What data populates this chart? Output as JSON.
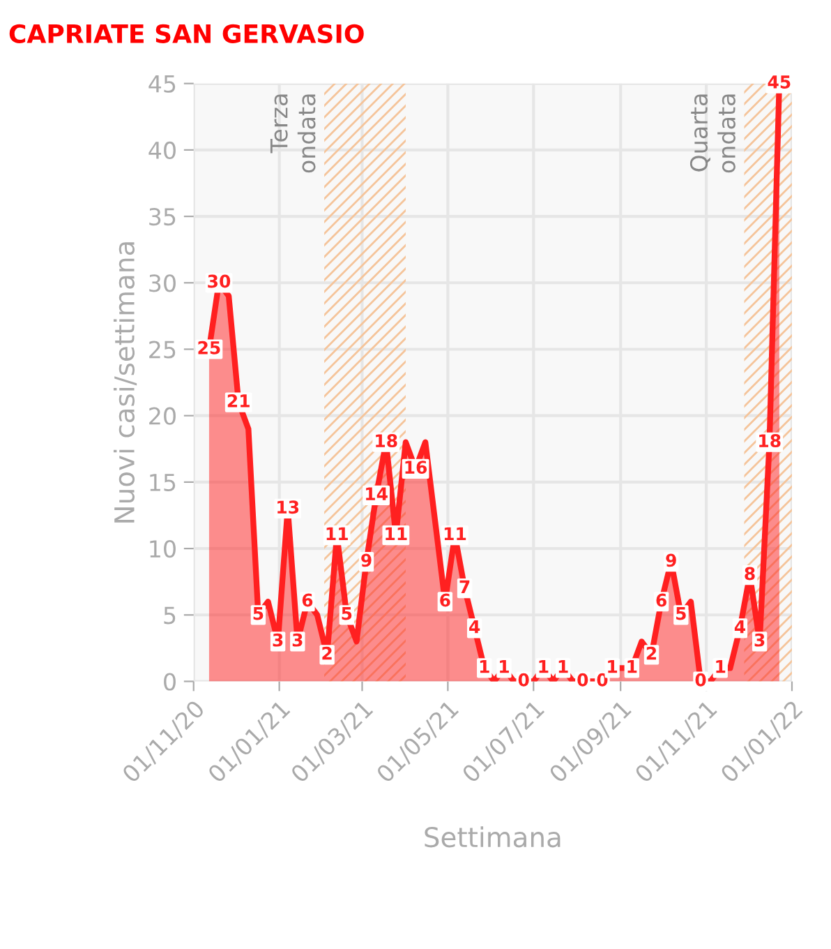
{
  "chart_data": {
    "type": "area",
    "title": "CAPRIATE SAN GERVASIO",
    "xlabel": "Settimana",
    "ylabel": "Nuovi casi/settimana",
    "x": [
      "2020-11-12",
      "2020-11-19",
      "2020-11-26",
      "2020-12-03",
      "2020-12-10",
      "2020-12-17",
      "2020-12-24",
      "2020-12-31",
      "2021-01-07",
      "2021-01-14",
      "2021-01-21",
      "2021-01-28",
      "2021-02-04",
      "2021-02-11",
      "2021-02-18",
      "2021-02-25",
      "2021-03-04",
      "2021-03-11",
      "2021-03-18",
      "2021-03-25",
      "2021-04-01",
      "2021-04-08",
      "2021-04-15",
      "2021-04-22",
      "2021-04-29",
      "2021-05-06",
      "2021-05-13",
      "2021-05-20",
      "2021-05-27",
      "2021-06-03",
      "2021-06-10",
      "2021-06-17",
      "2021-06-24",
      "2021-07-01",
      "2021-07-08",
      "2021-07-15",
      "2021-07-22",
      "2021-07-29",
      "2021-08-05",
      "2021-08-12",
      "2021-08-19",
      "2021-08-26",
      "2021-09-02",
      "2021-09-09",
      "2021-09-16",
      "2021-09-23",
      "2021-09-30",
      "2021-10-07",
      "2021-10-14",
      "2021-10-21",
      "2021-10-28",
      "2021-11-04",
      "2021-11-11",
      "2021-11-18",
      "2021-11-25",
      "2021-12-02",
      "2021-12-09",
      "2021-12-16",
      "2021-12-23"
    ],
    "series": [
      {
        "color": "#ff2020",
        "values": [
          25,
          30,
          29,
          21,
          19,
          5,
          6,
          3,
          13,
          3,
          6,
          5,
          2,
          11,
          5,
          3,
          9,
          14,
          18,
          11,
          18,
          16,
          18,
          12,
          6,
          11,
          7,
          4,
          1,
          0,
          1,
          0,
          0,
          0,
          1,
          0,
          1,
          0,
          0,
          0,
          0,
          1,
          1,
          1,
          3,
          2,
          6,
          9,
          5,
          6,
          0,
          0,
          1,
          1,
          4,
          8,
          3,
          18,
          45
        ],
        "value_labels": [
          "25",
          "30",
          null,
          "21",
          null,
          "5",
          null,
          "3",
          "13",
          "3",
          "6",
          null,
          "2",
          "11",
          "5",
          null,
          "9",
          "14",
          "18",
          "11",
          null,
          "16",
          null,
          null,
          "6",
          "11",
          "7",
          "4",
          "1",
          null,
          "1",
          null,
          "0",
          null,
          "1",
          null,
          "1",
          null,
          "0",
          null,
          "0",
          "1",
          null,
          "1",
          null,
          "2",
          "6",
          "9",
          "5",
          null,
          "0",
          null,
          "1",
          null,
          "4",
          "8",
          "3",
          "18",
          "45"
        ]
      }
    ],
    "xlim": [
      "2020-11-01",
      "2022-01-01"
    ],
    "xticks": [
      {
        "value": "2020-11-01",
        "label": "01/11/20"
      },
      {
        "value": "2021-01-01",
        "label": "01/01/21"
      },
      {
        "value": "2021-03-01",
        "label": "01/03/21"
      },
      {
        "value": "2021-05-01",
        "label": "01/05/21"
      },
      {
        "value": "2021-07-01",
        "label": "01/07/21"
      },
      {
        "value": "2021-09-01",
        "label": "01/09/21"
      },
      {
        "value": "2021-11-01",
        "label": "01/11/21"
      },
      {
        "value": "2022-01-01",
        "label": "01/01/22"
      }
    ],
    "ylim": [
      0,
      45
    ],
    "yticks": [
      0,
      5,
      10,
      15,
      20,
      25,
      30,
      35,
      40,
      45
    ],
    "grid": true,
    "bands": [
      {
        "axis": "x",
        "from": "2021-02-02",
        "to": "2021-04-01",
        "label": "Terza\nondata",
        "color": "#f5c49a"
      },
      {
        "axis": "x",
        "from": "2021-11-28",
        "to": "2022-01-01",
        "label": "Quarta\nondata",
        "color": "#f5c49a"
      }
    ]
  }
}
